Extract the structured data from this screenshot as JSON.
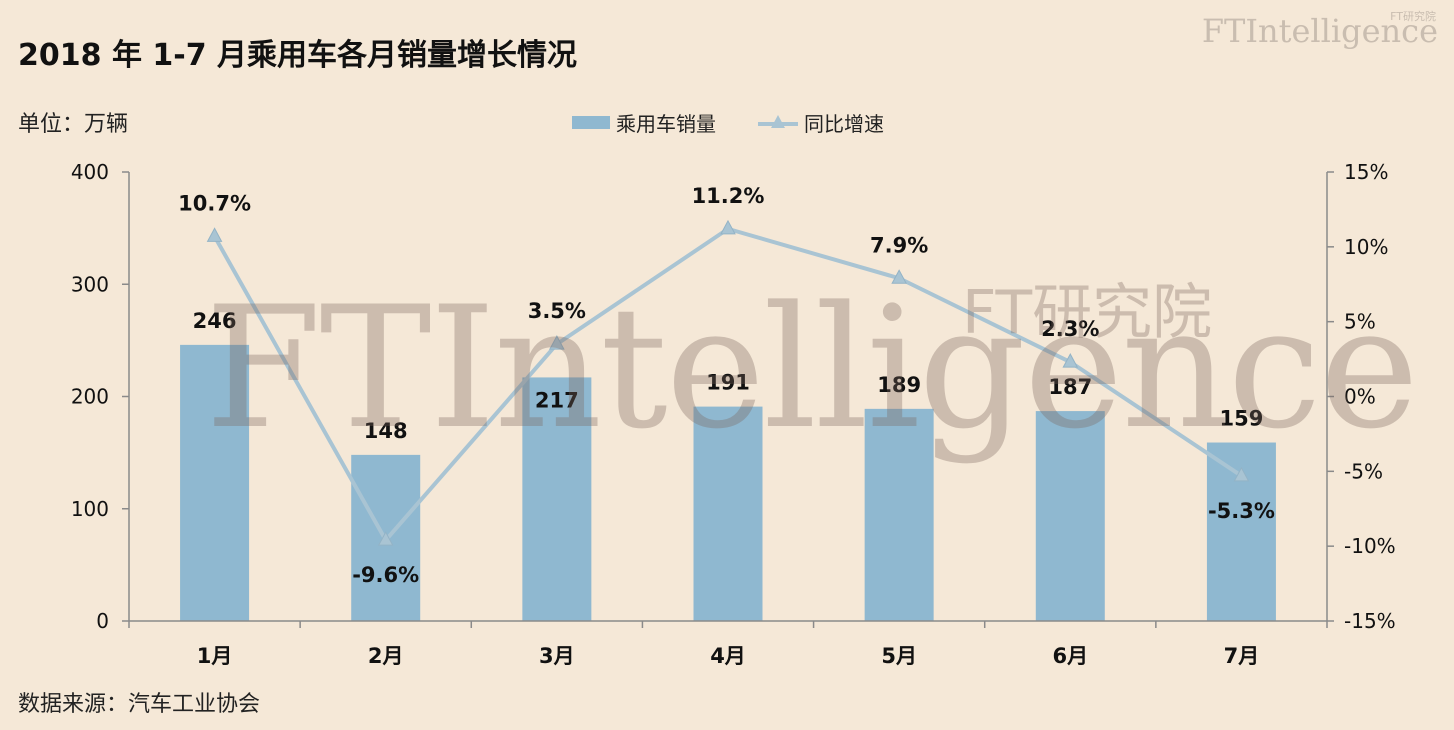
{
  "title": "2018 年 1-7 月乘用车各月销量增长情况",
  "brand": "FTIntelligence",
  "brand_sub": "FT研究院",
  "unit_label": "单位：万辆",
  "source_label": "数据来源：汽车工业协会",
  "watermark": {
    "main": "FTIntelligence",
    "sub": "FT研究院"
  },
  "colors": {
    "bar": "#8fb8d0",
    "line": "#a9c4d3",
    "background": "#f5e8d7",
    "axis": "#8a8a8a"
  },
  "legend": {
    "bar_label": "乘用车销量",
    "line_label": "同比增速"
  },
  "chart_data": {
    "type": "bar",
    "categories": [
      "1月",
      "2月",
      "3月",
      "4月",
      "5月",
      "6月",
      "7月"
    ],
    "series": [
      {
        "name": "乘用车销量",
        "type": "bar",
        "axis": "left",
        "values": [
          246,
          148,
          217,
          191,
          189,
          187,
          159
        ]
      },
      {
        "name": "同比增速",
        "type": "line",
        "axis": "right",
        "values": [
          10.7,
          -9.6,
          3.5,
          11.2,
          7.9,
          2.3,
          -5.3
        ]
      }
    ],
    "bar_labels": [
      "246",
      "148",
      "217",
      "191",
      "189",
      "187",
      "159"
    ],
    "line_labels": [
      "10.7%",
      "-9.6%",
      "3.5%",
      "11.2%",
      "7.9%",
      "2.3%",
      "-5.3%"
    ],
    "y_left": {
      "range": [
        0,
        400
      ],
      "ticks": [
        0,
        100,
        200,
        300,
        400
      ],
      "tick_labels": [
        "0",
        "100",
        "200",
        "300",
        "400"
      ]
    },
    "y_right": {
      "range": [
        -15,
        15
      ],
      "ticks": [
        -15,
        -10,
        -5,
        0,
        5,
        10,
        15
      ],
      "tick_labels": [
        "-15%",
        "-10%",
        "-5%",
        "0%",
        "5%",
        "10%",
        "15%"
      ]
    },
    "grid": false,
    "legend_position": "top-center"
  }
}
